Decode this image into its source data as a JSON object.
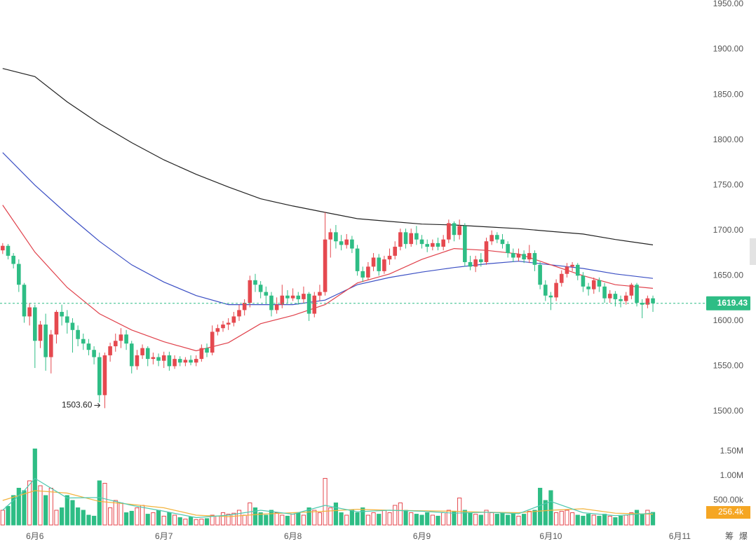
{
  "chart_data": {
    "type": "candlestick",
    "x": [
      -6,
      -5,
      -4,
      -3,
      -2,
      -1,
      0,
      1,
      2,
      3,
      4,
      5,
      6,
      7,
      8,
      9,
      10,
      11,
      12,
      13,
      14,
      15,
      16,
      17,
      18,
      19,
      20,
      21,
      22,
      23,
      24,
      25,
      26,
      27,
      28,
      29,
      30,
      31,
      32,
      33,
      34,
      35,
      36,
      37,
      38,
      39,
      40,
      41,
      42,
      43,
      44,
      45,
      46,
      47,
      48,
      49,
      50,
      51,
      52,
      53,
      54,
      55,
      56,
      57,
      58,
      59,
      60,
      61,
      62,
      63,
      64,
      65,
      66,
      67,
      68,
      69,
      70,
      71,
      72,
      73,
      74,
      75,
      76,
      77,
      78,
      79,
      80,
      81,
      82,
      83,
      84,
      85,
      86,
      87,
      88,
      89,
      90,
      91,
      92,
      93,
      94,
      95,
      96,
      97,
      98,
      99,
      100,
      101,
      102,
      103,
      104,
      105,
      106,
      107,
      108,
      109,
      110,
      111,
      112,
      113,
      114,
      115
    ],
    "open": [
      1678,
      1683,
      1672,
      1663,
      1640,
      1605,
      1615,
      1578,
      1596,
      1560,
      1585,
      1610,
      1605,
      1598,
      1590,
      1580,
      1575,
      1568,
      1560,
      1518,
      1562,
      1572,
      1578,
      1585,
      1575,
      1550,
      1562,
      1570,
      1558,
      1560,
      1556,
      1562,
      1550,
      1558,
      1554,
      1557,
      1554,
      1558,
      1570,
      1565,
      1588,
      1592,
      1596,
      1598,
      1605,
      1612,
      1620,
      1645,
      1640,
      1632,
      1628,
      1612,
      1618,
      1628,
      1625,
      1628,
      1624,
      1630,
      1608,
      1628,
      1632,
      1690,
      1698,
      1688,
      1684,
      1690,
      1680,
      1655,
      1648,
      1660,
      1670,
      1655,
      1668,
      1672,
      1682,
      1698,
      1685,
      1697,
      1690,
      1685,
      1682,
      1686,
      1682,
      1690,
      1708,
      1695,
      1705,
      1665,
      1660,
      1668,
      1665,
      1688,
      1695,
      1690,
      1685,
      1675,
      1670,
      1674,
      1668,
      1675,
      1662,
      1640,
      1628,
      1626,
      1642,
      1652,
      1660,
      1662,
      1650,
      1638,
      1635,
      1645,
      1638,
      1625,
      1630,
      1624,
      1622,
      1628,
      1640,
      1620,
      1618,
      1625
    ],
    "high": [
      1686,
      1685,
      1675,
      1668,
      1642,
      1620,
      1618,
      1600,
      1608,
      1590,
      1612,
      1618,
      1612,
      1603,
      1595,
      1586,
      1580,
      1572,
      1565,
      1565,
      1576,
      1586,
      1592,
      1590,
      1578,
      1568,
      1574,
      1572,
      1565,
      1564,
      1566,
      1566,
      1562,
      1561,
      1560,
      1562,
      1562,
      1574,
      1575,
      1595,
      1596,
      1600,
      1603,
      1610,
      1618,
      1624,
      1650,
      1652,
      1644,
      1638,
      1632,
      1626,
      1640,
      1634,
      1636,
      1632,
      1638,
      1632,
      1632,
      1640,
      1720,
      1702,
      1706,
      1695,
      1696,
      1694,
      1684,
      1660,
      1665,
      1675,
      1674,
      1672,
      1680,
      1688,
      1702,
      1702,
      1702,
      1705,
      1695,
      1690,
      1690,
      1692,
      1695,
      1712,
      1710,
      1712,
      1708,
      1672,
      1672,
      1675,
      1692,
      1700,
      1698,
      1696,
      1688,
      1680,
      1680,
      1678,
      1684,
      1678,
      1665,
      1645,
      1632,
      1646,
      1656,
      1664,
      1665,
      1664,
      1654,
      1642,
      1648,
      1648,
      1642,
      1634,
      1633,
      1628,
      1632,
      1642,
      1642,
      1624,
      1628,
      1628
    ],
    "low": [
      1674,
      1668,
      1658,
      1632,
      1598,
      1595,
      1548,
      1570,
      1545,
      1542,
      1575,
      1595,
      1586,
      1565,
      1572,
      1568,
      1562,
      1552,
      1510,
      1503.6,
      1555,
      1566,
      1570,
      1568,
      1542,
      1546,
      1558,
      1550,
      1552,
      1550,
      1548,
      1545,
      1547,
      1550,
      1550,
      1551,
      1550,
      1555,
      1560,
      1562,
      1584,
      1588,
      1590,
      1594,
      1600,
      1606,
      1615,
      1632,
      1625,
      1620,
      1605,
      1608,
      1614,
      1620,
      1622,
      1618,
      1620,
      1600,
      1604,
      1622,
      1628,
      1670,
      1680,
      1678,
      1680,
      1675,
      1650,
      1643,
      1645,
      1655,
      1650,
      1652,
      1662,
      1668,
      1678,
      1680,
      1682,
      1684,
      1680,
      1676,
      1678,
      1678,
      1678,
      1686,
      1688,
      1690,
      1660,
      1656,
      1654,
      1660,
      1662,
      1684,
      1686,
      1680,
      1670,
      1665,
      1666,
      1664,
      1664,
      1655,
      1635,
      1622,
      1612,
      1622,
      1638,
      1648,
      1655,
      1645,
      1632,
      1628,
      1630,
      1632,
      1620,
      1620,
      1616,
      1615,
      1618,
      1624,
      1616,
      1603,
      1614,
      1610
    ],
    "close": [
      1683,
      1672,
      1663,
      1640,
      1605,
      1615,
      1578,
      1596,
      1560,
      1585,
      1610,
      1605,
      1598,
      1590,
      1580,
      1575,
      1568,
      1560,
      1518,
      1562,
      1572,
      1578,
      1585,
      1575,
      1550,
      1562,
      1570,
      1558,
      1560,
      1556,
      1562,
      1550,
      1558,
      1554,
      1557,
      1554,
      1558,
      1570,
      1565,
      1588,
      1592,
      1596,
      1598,
      1605,
      1612,
      1620,
      1645,
      1640,
      1632,
      1628,
      1612,
      1618,
      1628,
      1625,
      1628,
      1624,
      1630,
      1608,
      1628,
      1632,
      1690,
      1698,
      1688,
      1684,
      1690,
      1680,
      1655,
      1648,
      1660,
      1670,
      1655,
      1668,
      1672,
      1682,
      1698,
      1685,
      1697,
      1690,
      1685,
      1682,
      1686,
      1682,
      1690,
      1708,
      1695,
      1705,
      1665,
      1660,
      1668,
      1665,
      1688,
      1695,
      1690,
      1685,
      1675,
      1670,
      1674,
      1668,
      1675,
      1662,
      1640,
      1628,
      1626,
      1642,
      1652,
      1660,
      1662,
      1650,
      1638,
      1635,
      1645,
      1638,
      1625,
      1630,
      1624,
      1622,
      1628,
      1640,
      1620,
      1618,
      1625,
      1619.43
    ],
    "up_color": "#e5494f",
    "down_color": "#2ebd85",
    "xlim": [
      -6.5,
      124
    ],
    "xticks": [
      {
        "value": 0,
        "label": "6月6"
      },
      {
        "value": 24,
        "label": "6月7"
      },
      {
        "value": 48,
        "label": "6月8"
      },
      {
        "value": 72,
        "label": "6月9"
      },
      {
        "value": 96,
        "label": "6月10"
      },
      {
        "value": 120,
        "label": "6月11"
      }
    ],
    "ylim": [
      1500,
      1950
    ],
    "yticks": [
      {
        "value": 1500,
        "label": "1500.00"
      },
      {
        "value": 1550,
        "label": "1550.00"
      },
      {
        "value": 1600,
        "label": "1600.00"
      },
      {
        "value": 1650,
        "label": "1650.00"
      },
      {
        "value": 1700,
        "label": "1700.00"
      },
      {
        "value": 1750,
        "label": "1750.00"
      },
      {
        "value": 1800,
        "label": "1800.00"
      },
      {
        "value": 1850,
        "label": "1850.00"
      },
      {
        "value": 1900,
        "label": "1900.00"
      },
      {
        "value": 1950,
        "label": "1950.00"
      }
    ],
    "ma_lines": [
      {
        "color": "#222222",
        "x": [
          -6,
          0,
          6,
          12,
          18,
          24,
          30,
          36,
          42,
          48,
          54,
          60,
          66,
          72,
          78,
          84,
          90,
          96,
          102,
          108,
          115
        ],
        "values": [
          1879,
          1870,
          1842,
          1818,
          1797,
          1778,
          1762,
          1748,
          1735,
          1727,
          1720,
          1713,
          1710,
          1707,
          1706,
          1704,
          1702,
          1699,
          1696,
          1690,
          1684
        ]
      },
      {
        "color": "#3b4fc4",
        "x": [
          -6,
          0,
          6,
          12,
          18,
          24,
          30,
          36,
          42,
          48,
          54,
          60,
          66,
          72,
          78,
          84,
          90,
          96,
          102,
          108,
          115
        ],
        "values": [
          1786,
          1750,
          1718,
          1688,
          1662,
          1643,
          1628,
          1618,
          1618,
          1618,
          1623,
          1640,
          1648,
          1654,
          1659,
          1663,
          1666,
          1662,
          1658,
          1652,
          1647
        ]
      },
      {
        "color": "#e0404a",
        "x": [
          -6,
          0,
          6,
          12,
          18,
          24,
          30,
          36,
          42,
          48,
          54,
          60,
          66,
          72,
          78,
          84,
          90,
          96,
          102,
          108,
          115
        ],
        "values": [
          1728,
          1676,
          1637,
          1608,
          1590,
          1577,
          1567,
          1576,
          1597,
          1606,
          1618,
          1642,
          1652,
          1668,
          1680,
          1678,
          1674,
          1662,
          1650,
          1640,
          1636
        ]
      }
    ],
    "low_annotation": {
      "value": 1503.6,
      "label": "1503.60"
    },
    "last_price": 1619.43,
    "volume": {
      "values": [
        300000,
        380000,
        600000,
        750000,
        700000,
        900000,
        1550000,
        800000,
        600000,
        750000,
        300000,
        350000,
        600000,
        500000,
        350000,
        300000,
        200000,
        180000,
        900000,
        850000,
        350000,
        500000,
        450000,
        250000,
        280000,
        350000,
        400000,
        220000,
        250000,
        300000,
        180000,
        250000,
        200000,
        150000,
        120000,
        160000,
        110000,
        120000,
        130000,
        200000,
        180000,
        250000,
        220000,
        240000,
        300000,
        200000,
        450000,
        350000,
        250000,
        200000,
        300000,
        250000,
        200000,
        180000,
        220000,
        250000,
        200000,
        350000,
        300000,
        250000,
        950000,
        350000,
        450000,
        250000,
        200000,
        300000,
        250000,
        350000,
        200000,
        250000,
        220000,
        300000,
        250000,
        400000,
        450000,
        300000,
        250000,
        220000,
        200000,
        250000,
        200000,
        180000,
        250000,
        300000,
        280000,
        550000,
        300000,
        250000,
        220000,
        200000,
        300000,
        250000,
        220000,
        250000,
        200000,
        250000,
        180000,
        220000,
        280000,
        300000,
        750000,
        500000,
        700000,
        250000,
        280000,
        300000,
        250000,
        200000,
        180000,
        220000,
        200000,
        180000,
        220000,
        180000,
        150000,
        180000,
        200000,
        250000,
        300000,
        220000,
        300000,
        256400
      ],
      "ylim": [
        0,
        1500000
      ],
      "yticks": [
        {
          "value": 500000,
          "label": "500.00k"
        },
        {
          "value": 1000000,
          "label": "1.00M"
        },
        {
          "value": 1500000,
          "label": "1.50M"
        }
      ],
      "last_label": {
        "value": 256400,
        "label": "256.4k"
      },
      "ma_lines": [
        {
          "color": "#f2b33d",
          "x": [
            -6,
            0,
            6,
            12,
            18,
            24,
            30,
            36,
            42,
            48,
            54,
            60,
            66,
            72,
            78,
            84,
            90,
            96,
            102,
            108,
            115
          ],
          "values": [
            500000,
            700000,
            650000,
            480000,
            420000,
            350000,
            200000,
            170000,
            220000,
            250000,
            280000,
            320000,
            300000,
            290000,
            280000,
            260000,
            250000,
            300000,
            330000,
            240000,
            220000
          ]
        },
        {
          "color": "#4fc9b0",
          "x": [
            -6,
            -2,
            0,
            6,
            12,
            18,
            24,
            30,
            36,
            42,
            48,
            54,
            60,
            66,
            72,
            78,
            84,
            90,
            96,
            102,
            108,
            115
          ],
          "values": [
            300000,
            700000,
            950000,
            550000,
            560000,
            400000,
            280000,
            150000,
            200000,
            300000,
            220000,
            400000,
            270000,
            300000,
            280000,
            240000,
            260000,
            230000,
            480000,
            250000,
            190000,
            240000
          ]
        }
      ]
    },
    "footer_icons": [
      "筹",
      "爆"
    ]
  }
}
